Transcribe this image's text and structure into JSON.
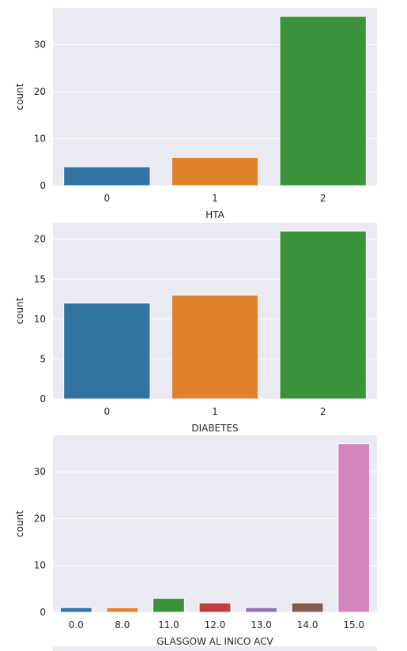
{
  "chart_data": [
    {
      "type": "bar",
      "categories": [
        "0",
        "1",
        "2"
      ],
      "values": [
        4,
        6,
        36
      ],
      "xlabel": "HTA",
      "ylabel": "count",
      "ylim": [
        0,
        37.8
      ],
      "yticks": [
        0,
        10,
        20,
        30
      ],
      "colors": [
        "#3274a1",
        "#e1812c",
        "#3a923a"
      ],
      "grid": true
    },
    {
      "type": "bar",
      "categories": [
        "0",
        "1",
        "2"
      ],
      "values": [
        12,
        13,
        21
      ],
      "xlabel": "DIABETES",
      "ylabel": "count",
      "ylim": [
        0,
        22.05
      ],
      "yticks": [
        0,
        5,
        10,
        15,
        20
      ],
      "colors": [
        "#3274a1",
        "#e1812c",
        "#3a923a"
      ],
      "grid": true
    },
    {
      "type": "bar",
      "categories": [
        "0.0",
        "8.0",
        "11.0",
        "12.0",
        "13.0",
        "14.0",
        "15.0"
      ],
      "values": [
        1,
        1,
        3,
        2,
        1,
        2,
        36
      ],
      "xlabel": "GLASGOW AL INICO ACV",
      "ylabel": "count",
      "ylim": [
        0,
        37.8
      ],
      "yticks": [
        0,
        10,
        20,
        30
      ],
      "colors": [
        "#3274a1",
        "#e1812c",
        "#3a923a",
        "#c03d3e",
        "#9372b2",
        "#845b53",
        "#d684bd"
      ],
      "grid": true
    }
  ]
}
